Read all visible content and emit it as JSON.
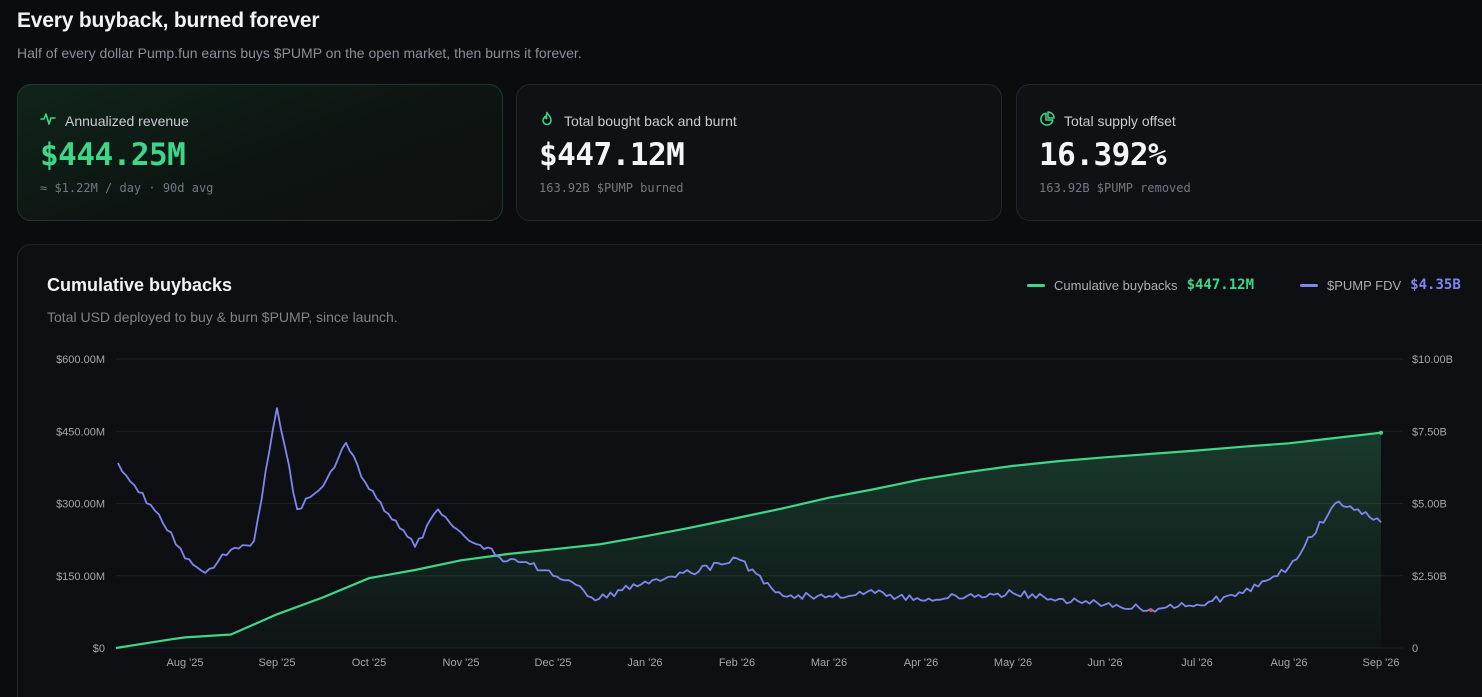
{
  "header": {
    "title": "Every buyback, burned forever",
    "subtitle": "Half of every dollar Pump.fun earns buys $PUMP on the open market, then burns it forever."
  },
  "stats": [
    {
      "icon": "pulse-icon",
      "label": "Annualized revenue",
      "value": "$444.25M",
      "sub": "≈ $1.22M / day · 90d avg"
    },
    {
      "icon": "flame-icon",
      "label": "Total bought back and burnt",
      "value": "$447.12M",
      "sub": "163.92B $PUMP burned"
    },
    {
      "icon": "pie-chart-icon",
      "label": "Total supply offset",
      "value": "16.392%",
      "sub": "163.92B $PUMP removed"
    }
  ],
  "colors": {
    "accent_green": "#3fd68a",
    "accent_purple": "#7f86ee",
    "highlight_red": "#e0485a"
  },
  "chart": {
    "title": "Cumulative buybacks",
    "subtitle": "Total USD deployed to buy & burn $PUMP, since launch.",
    "legend": [
      {
        "name": "Cumulative buybacks",
        "value": "$447.12M",
        "color": "#3fd68a"
      },
      {
        "name": "$PUMP FDV",
        "value": "$4.35B",
        "color": "#7f86ee"
      }
    ]
  },
  "chart_data": {
    "type": "line",
    "x_labels": [
      "Aug '25",
      "Sep '25",
      "Oct '25",
      "Nov '25",
      "Dec '25",
      "Jan '26",
      "Feb '26",
      "Mar '26",
      "Apr '26",
      "May '26",
      "Jun '26",
      "Jul '26",
      "Aug '26",
      "Sep '26"
    ],
    "y_left": {
      "ticks": [
        "$0",
        "$150.00M",
        "$300.00M",
        "$450.00M",
        "$600.00M"
      ],
      "range": [
        0,
        600
      ]
    },
    "y_right": {
      "ticks": [
        "0",
        "$2.50B",
        "$5.00B",
        "$7.50B",
        "$10.00B"
      ],
      "range": [
        0,
        10
      ]
    },
    "grid": true,
    "legend_position": "top-right",
    "series": [
      {
        "name": "Cumulative buybacks",
        "axis": "left",
        "style": "area",
        "points": [
          [
            "Jul '25 mid",
            0
          ],
          [
            "Jul '25 end",
            18
          ],
          [
            "Aug '25",
            22
          ],
          [
            "Aug '25 mid",
            28
          ],
          [
            "Sep '25",
            70
          ],
          [
            "Sep '25 mid",
            105
          ],
          [
            "Oct '25",
            145
          ],
          [
            "Oct '25 mid",
            162
          ],
          [
            "Nov '25",
            182
          ],
          [
            "Nov '25 mid",
            195
          ],
          [
            "Dec '25",
            205
          ],
          [
            "Dec '25 mid",
            215
          ],
          [
            "Jan '26",
            232
          ],
          [
            "Jan '26 mid",
            250
          ],
          [
            "Feb '26",
            270
          ],
          [
            "Feb '26 mid",
            290
          ],
          [
            "Mar '26",
            312
          ],
          [
            "Mar '26 mid",
            330
          ],
          [
            "Apr '26",
            350
          ],
          [
            "Apr '26 mid",
            365
          ],
          [
            "May '26",
            378
          ],
          [
            "May '26 mid",
            388
          ],
          [
            "Jun '26",
            396
          ],
          [
            "Jun '26 mid",
            403
          ],
          [
            "Jul '26",
            410
          ],
          [
            "Jul '26 mid",
            418
          ],
          [
            "Aug '26",
            425
          ],
          [
            "Aug '26 mid",
            436
          ],
          [
            "Sep '26",
            447
          ]
        ]
      },
      {
        "name": "$PUMP FDV",
        "axis": "right",
        "style": "line",
        "points": [
          [
            "Jul '25 mid",
            6.4
          ],
          [
            "Jul '25 end",
            4.0
          ],
          [
            "Aug '25 early",
            2.6
          ],
          [
            "Aug '25",
            3.1
          ],
          [
            "Aug '25 mid",
            3.4
          ],
          [
            "Aug '25 late",
            3.7
          ],
          [
            "Sep '25 early",
            4.8
          ],
          [
            "Sep '25",
            8.3
          ],
          [
            "Sep '25 mid",
            5.6
          ],
          [
            "Sep '25 late",
            7.1
          ],
          [
            "Oct '25",
            5.5
          ],
          [
            "Oct '25 mid",
            3.5
          ],
          [
            "Oct '25 late",
            4.8
          ],
          [
            "Nov '25",
            4.0
          ],
          [
            "Nov '25 mid",
            3.0
          ],
          [
            "Nov '25 late",
            2.9
          ],
          [
            "Dec '25",
            2.5
          ],
          [
            "Dec '25 mid",
            1.7
          ],
          [
            "Jan '26",
            2.3
          ],
          [
            "Jan '26 mid",
            2.6
          ],
          [
            "Feb '26",
            3.1
          ],
          [
            "Feb '26 mid",
            1.8
          ],
          [
            "Mar '26",
            1.8
          ],
          [
            "Mar '26 mid",
            1.9
          ],
          [
            "Apr '26",
            1.65
          ],
          [
            "Apr '26 mid",
            1.8
          ],
          [
            "May '26",
            1.9
          ],
          [
            "May '26 mid",
            1.7
          ],
          [
            "Jun '26",
            1.5
          ],
          [
            "Jun '26 mid",
            1.35
          ],
          [
            "Jul '26",
            1.5
          ],
          [
            "Jul '26 mid",
            1.9
          ],
          [
            "Aug '26",
            2.8
          ],
          [
            "Aug '26 mid",
            5.0
          ],
          [
            "Aug '26 late",
            4.8
          ],
          [
            "Sep '26",
            4.35
          ]
        ]
      }
    ]
  }
}
